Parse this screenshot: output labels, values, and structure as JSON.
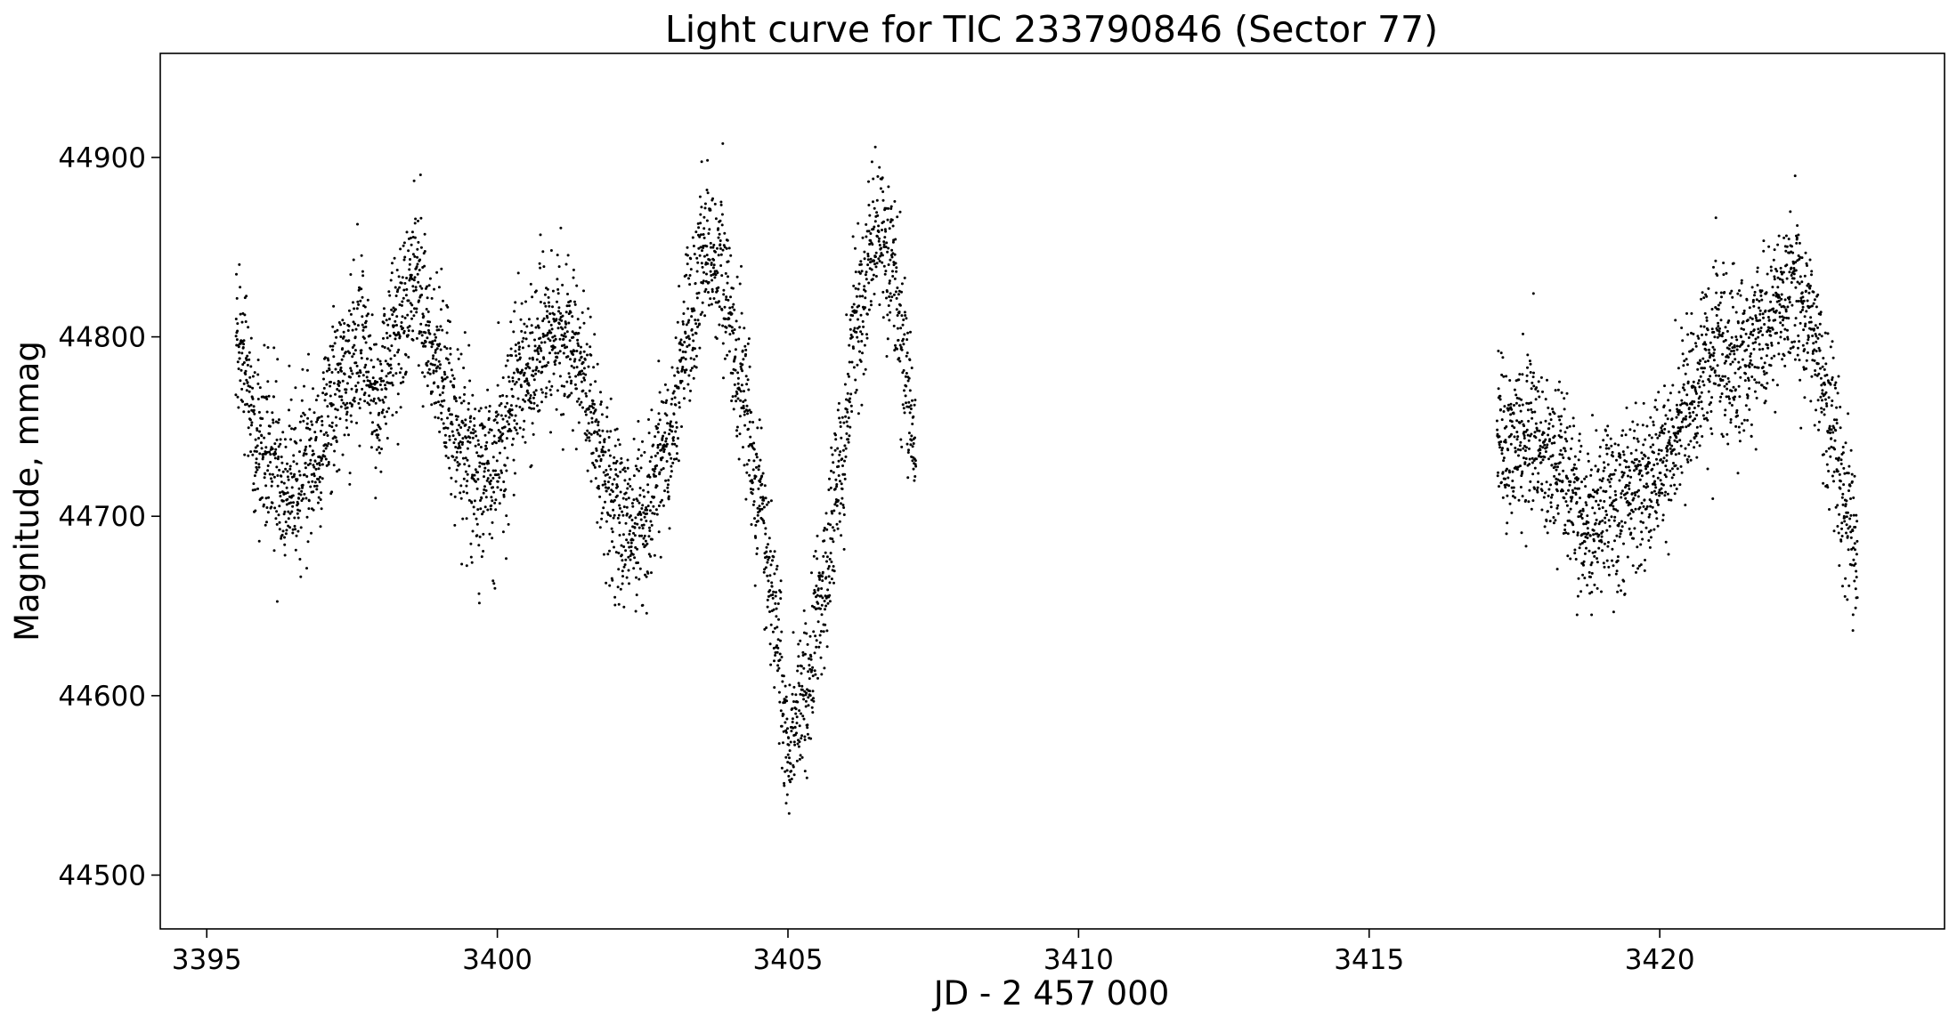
{
  "chart_data": {
    "type": "scatter",
    "title": "Light curve for TIC 233790846 (Sector 77)",
    "xlabel": "JD - 2 457 000",
    "ylabel": "Magnitude, mmag",
    "xlim": [
      3394.2,
      3424.9
    ],
    "ylim": [
      44470,
      44958
    ],
    "xticks": [
      3395,
      3400,
      3405,
      3410,
      3415,
      3420
    ],
    "yticks": [
      44500,
      44600,
      44700,
      44800,
      44900
    ],
    "grid": false,
    "legend": "none",
    "marker_color": "#000000",
    "series": [
      {
        "segments": [
          {
            "x_range": [
              3395.5,
              3407.2
            ],
            "curve": [
              [
                3395.5,
                44800
              ],
              [
                3395.9,
                44745
              ],
              [
                3396.4,
                44715
              ],
              [
                3396.9,
                44735
              ],
              [
                3397.3,
                44770
              ],
              [
                3397.7,
                44800
              ],
              [
                3397.9,
                44760
              ],
              [
                3398.2,
                44795
              ],
              [
                3398.6,
                44830
              ],
              [
                3398.9,
                44790
              ],
              [
                3399.3,
                44745
              ],
              [
                3399.8,
                44720
              ],
              [
                3400.1,
                44740
              ],
              [
                3400.4,
                44780
              ],
              [
                3400.9,
                44805
              ],
              [
                3401.3,
                44795
              ],
              [
                3401.6,
                44765
              ],
              [
                3401.9,
                44720
              ],
              [
                3402.2,
                44690
              ],
              [
                3402.5,
                44700
              ],
              [
                3402.9,
                44740
              ],
              [
                3403.3,
                44810
              ],
              [
                3403.6,
                44850
              ],
              [
                3403.9,
                44830
              ],
              [
                3404.2,
                44770
              ],
              [
                3404.5,
                44715
              ],
              [
                3404.8,
                44640
              ],
              [
                3405.0,
                44570
              ],
              [
                3405.3,
                44600
              ],
              [
                3405.6,
                44655
              ],
              [
                3405.9,
                44720
              ],
              [
                3406.2,
                44810
              ],
              [
                3406.5,
                44855
              ],
              [
                3406.8,
                44840
              ],
              [
                3407.0,
                44790
              ],
              [
                3407.2,
                44740
              ]
            ],
            "points_per_day": 300,
            "scatter_mmag": 22
          },
          {
            "x_range": [
              3417.2,
              3423.4
            ],
            "curve": [
              [
                3417.2,
                44745
              ],
              [
                3417.8,
                44745
              ],
              [
                3418.3,
                44725
              ],
              [
                3418.8,
                44695
              ],
              [
                3419.2,
                44705
              ],
              [
                3419.7,
                44715
              ],
              [
                3420.1,
                44730
              ],
              [
                3420.5,
                44765
              ],
              [
                3421.0,
                44790
              ],
              [
                3421.5,
                44790
              ],
              [
                3421.9,
                44810
              ],
              [
                3422.3,
                44830
              ],
              [
                3422.6,
                44810
              ],
              [
                3422.9,
                44760
              ],
              [
                3423.2,
                44705
              ],
              [
                3423.4,
                44680
              ]
            ],
            "points_per_day": 300,
            "scatter_mmag": 22
          }
        ]
      }
    ]
  }
}
